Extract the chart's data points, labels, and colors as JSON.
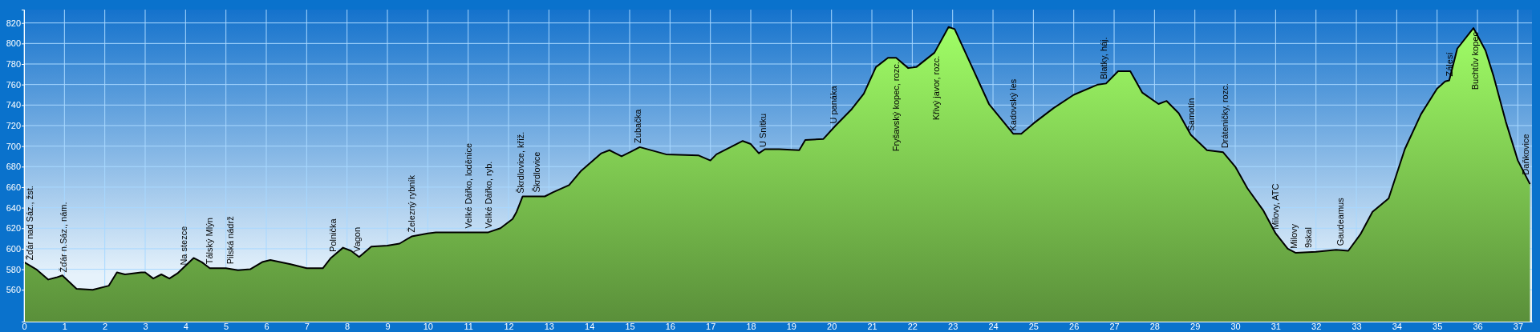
{
  "chart_data": {
    "type": "area",
    "xlim": [
      0,
      37.35
    ],
    "ylim": [
      529,
      833
    ],
    "xticks": [
      0,
      1,
      2,
      3,
      4,
      5,
      6,
      7,
      8,
      9,
      10,
      11,
      12,
      13,
      14,
      15,
      16,
      17,
      18,
      19,
      20,
      21,
      22,
      23,
      24,
      25,
      26,
      27,
      28,
      29,
      30,
      31,
      32,
      33,
      34,
      35,
      36,
      37
    ],
    "yticks": [
      560,
      580,
      600,
      620,
      640,
      660,
      680,
      700,
      720,
      740,
      760,
      780,
      800,
      820
    ],
    "grid": true,
    "series": [
      {
        "color": "#74b84a",
        "x": [
          0,
          0.3,
          0.6,
          0.8,
          0.95,
          1.0,
          1.3,
          1.7,
          2.1,
          2.3,
          2.5,
          2.9,
          3.0,
          3.2,
          3.4,
          3.6,
          3.8,
          4.2,
          4.4,
          4.6,
          5.0,
          5.3,
          5.6,
          5.9,
          6.1,
          6.6,
          7.0,
          7.4,
          7.6,
          7.9,
          8.1,
          8.3,
          8.6,
          9.0,
          9.3,
          9.6,
          10.0,
          10.2,
          11.0,
          11.5,
          11.8,
          12.1,
          12.2,
          12.35,
          12.9,
          13.1,
          13.5,
          13.8,
          14.3,
          14.5,
          14.8,
          15.05,
          15.25,
          15.9,
          16.7,
          17.0,
          17.15,
          17.5,
          17.8,
          18.0,
          18.2,
          18.35,
          18.7,
          19.2,
          19.35,
          19.8,
          20.1,
          20.5,
          20.8,
          21.1,
          21.4,
          21.6,
          21.9,
          22.1,
          22.55,
          22.9,
          23.05,
          23.4,
          23.9,
          24.5,
          24.7,
          25.0,
          25.5,
          26.0,
          26.6,
          26.8,
          27.1,
          27.4,
          27.7,
          28.1,
          28.3,
          28.6,
          28.9,
          29.3,
          29.7,
          30.0,
          30.3,
          30.7,
          31.0,
          31.3,
          31.5,
          32.0,
          32.5,
          32.8,
          33.1,
          33.4,
          33.8,
          34.2,
          34.6,
          35.0,
          35.2,
          35.3,
          35.5,
          35.9,
          36.2,
          36.4,
          36.7,
          37.0,
          37.3
        ],
        "values": [
          587,
          580,
          570,
          572,
          574,
          572,
          561,
          560,
          564,
          577,
          575,
          577,
          577,
          571,
          575,
          571,
          576,
          591,
          587,
          581,
          581,
          579,
          580,
          587,
          589,
          585,
          581,
          581,
          591,
          601,
          598,
          592,
          602,
          603,
          605,
          612,
          615,
          616,
          616,
          616,
          620,
          629,
          636,
          651,
          651,
          655,
          662,
          676,
          693,
          696,
          690,
          695,
          699,
          692,
          691,
          686,
          692,
          699,
          705,
          702,
          693,
          697,
          697,
          696,
          706,
          707,
          720,
          736,
          751,
          777,
          786,
          786,
          776,
          777,
          791,
          816,
          814,
          784,
          741,
          712,
          712,
          722,
          737,
          750,
          760,
          761,
          773,
          773,
          752,
          741,
          744,
          732,
          711,
          696,
          694,
          680,
          659,
          637,
          615,
          600,
          596,
          597,
          599,
          598,
          614,
          636,
          649,
          697,
          731,
          756,
          763,
          764,
          795,
          815,
          793,
          768,
          724,
          686,
          663
        ]
      }
    ],
    "annotations": [
      {
        "text": "Žďár nad Sáz., žst.",
        "x": 0.15,
        "y": 585
      },
      {
        "text": "Žďár n.Sáz., nám.",
        "x": 0.98,
        "y": 573
      },
      {
        "text": "Na stezce",
        "x": 3.95,
        "y": 580
      },
      {
        "text": "Tálský Mlýn",
        "x": 4.6,
        "y": 581
      },
      {
        "text": "Pilská nádrž",
        "x": 5.1,
        "y": 581
      },
      {
        "text": "Polnička",
        "x": 7.65,
        "y": 593
      },
      {
        "text": "Vagon",
        "x": 8.25,
        "y": 593
      },
      {
        "text": "Železný rybník",
        "x": 9.6,
        "y": 612
      },
      {
        "text": "Velké Dářko, loděnice",
        "x": 11.0,
        "y": 616
      },
      {
        "text": "Velké Dářko, ryb.",
        "x": 11.5,
        "y": 616
      },
      {
        "text": "Škrdlovice, křiž.",
        "x": 12.3,
        "y": 650
      },
      {
        "text": "Škrdlovice",
        "x": 12.7,
        "y": 651
      },
      {
        "text": "Zubačka",
        "x": 15.2,
        "y": 699
      },
      {
        "text": "U Snítku",
        "x": 18.3,
        "y": 695
      },
      {
        "text": "U panáka",
        "x": 20.05,
        "y": 718
      },
      {
        "text": "Fryšavský kopec, rozc.",
        "x": 21.6,
        "y": 786
      },
      {
        "text": "Křivý javor, rozc.",
        "x": 22.6,
        "y": 792
      },
      {
        "text": "Kadovský les",
        "x": 24.5,
        "y": 711
      },
      {
        "text": "Blatky, háj.",
        "x": 26.75,
        "y": 761
      },
      {
        "text": "Samotín",
        "x": 28.9,
        "y": 711
      },
      {
        "text": "Dráteničky, rozc.",
        "x": 29.75,
        "y": 694
      },
      {
        "text": "Milovy, ATC",
        "x": 31.0,
        "y": 615
      },
      {
        "text": "Milovy",
        "x": 31.45,
        "y": 596
      },
      {
        "text": "9skal",
        "x": 31.8,
        "y": 597
      },
      {
        "text": "Gaudeamus",
        "x": 32.6,
        "y": 599
      },
      {
        "text": "Zálesí",
        "x": 35.3,
        "y": 764
      },
      {
        "text": "Buchtův kopec",
        "x": 35.95,
        "y": 815
      },
      {
        "text": "Daňkovice",
        "x": 37.2,
        "y": 668
      }
    ]
  }
}
